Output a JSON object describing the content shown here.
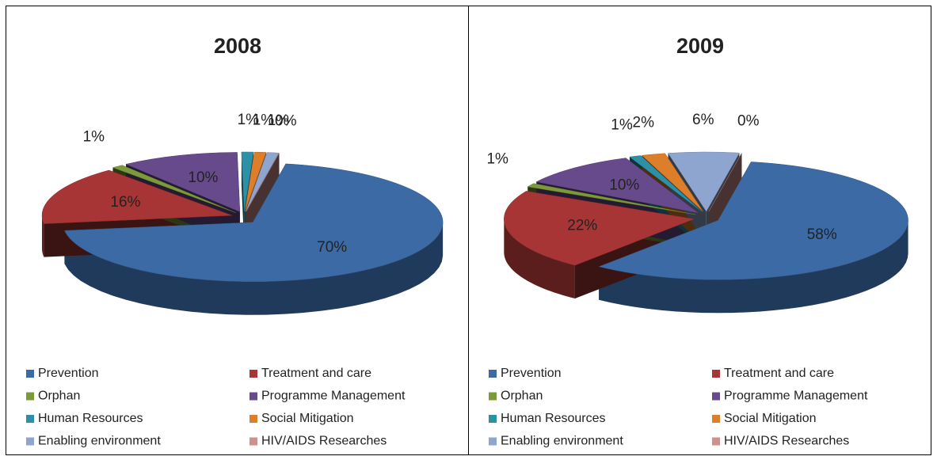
{
  "chart_data": [
    {
      "type": "pie",
      "title": "2008",
      "categories": [
        "Prevention",
        "Treatment and care",
        "Orphan",
        "Programme Management",
        "Human Resources",
        "Social Mitigation",
        "Enabling environment",
        "HIV/AIDS Researches"
      ],
      "values": [
        70,
        16,
        1,
        10,
        1,
        1,
        1,
        0
      ],
      "value_labels": [
        "70%",
        "16%",
        "1%",
        "10%",
        "1%",
        "1%",
        "1%",
        "0%"
      ],
      "colors": [
        "#3b6aa5",
        "#a73535",
        "#7d9a3a",
        "#674a8c",
        "#2c91a6",
        "#dc7e2a",
        "#8ea6cf",
        "#cf8f8d"
      ],
      "legend": "bottom"
    },
    {
      "type": "pie",
      "title": "2009",
      "categories": [
        "Prevention",
        "Treatment and care",
        "Orphan",
        "Programme Management",
        "Human Resources",
        "Social Mitigation",
        "Enabling environment",
        "HIV/AIDS Researches"
      ],
      "values": [
        58,
        22,
        1,
        10,
        1,
        2,
        6,
        0
      ],
      "value_labels": [
        "58%",
        "22%",
        "1%",
        "10%",
        "1%",
        "2%",
        "6%",
        "0%"
      ],
      "colors": [
        "#3b6aa5",
        "#a73535",
        "#7d9a3a",
        "#674a8c",
        "#2c91a6",
        "#dc7e2a",
        "#8ea6cf",
        "#cf8f8d"
      ],
      "legend": "bottom"
    }
  ]
}
